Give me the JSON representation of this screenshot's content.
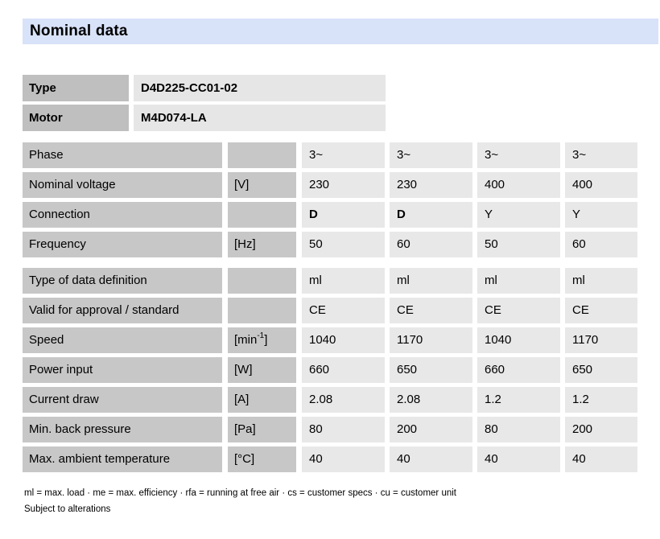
{
  "page": {
    "title": "Nominal data"
  },
  "colors": {
    "title_band_bg": "#d8e2f8",
    "label_cell_bg": "#c7c7c7",
    "id_label_cell_bg": "#bfbfbf",
    "value_cell_bg": "#e8e8e8"
  },
  "id_table": {
    "rows": [
      {
        "label": "Type",
        "value": "D4D225-CC01-02"
      },
      {
        "label": "Motor",
        "value": "M4D074-LA"
      }
    ]
  },
  "electrical_table": {
    "rows": [
      {
        "label": "Phase",
        "unit": "",
        "values": [
          "3~",
          "3~",
          "3~",
          "3~"
        ]
      },
      {
        "label": "Nominal voltage",
        "unit": "[V]",
        "values": [
          "230",
          "230",
          "400",
          "400"
        ]
      },
      {
        "label": "Connection",
        "unit": "",
        "values": [
          "D",
          "D",
          "Y",
          "Y"
        ]
      },
      {
        "label": "Frequency",
        "unit": "[Hz]",
        "values": [
          "50",
          "60",
          "50",
          "60"
        ]
      }
    ]
  },
  "performance_table": {
    "rows": [
      {
        "label": "Type of data definition",
        "unit": "",
        "values": [
          "ml",
          "ml",
          "ml",
          "ml"
        ]
      },
      {
        "label": "Valid for approval / standard",
        "unit": "",
        "values": [
          "CE",
          "CE",
          "CE",
          "CE"
        ]
      },
      {
        "label": "Speed",
        "unit_pre": "[min",
        "unit_sup": "-1",
        "unit_post": "]",
        "values": [
          "1040",
          "1170",
          "1040",
          "1170"
        ]
      },
      {
        "label": "Power input",
        "unit": "[W]",
        "values": [
          "660",
          "650",
          "660",
          "650"
        ]
      },
      {
        "label": "Current draw",
        "unit": "[A]",
        "values": [
          "2.08",
          "2.08",
          "1.2",
          "1.2"
        ]
      },
      {
        "label": "Min. back pressure",
        "unit": "[Pa]",
        "values": [
          "80",
          "200",
          "80",
          "200"
        ]
      },
      {
        "label": "Max. ambient temperature",
        "unit": "[°C]",
        "values": [
          "40",
          "40",
          "40",
          "40"
        ]
      }
    ]
  },
  "footnotes": {
    "legend": "ml = max. load · me = max. efficiency · rfa = running at free air · cs = customer specs · cu = customer unit",
    "alterations": "Subject to alterations"
  }
}
